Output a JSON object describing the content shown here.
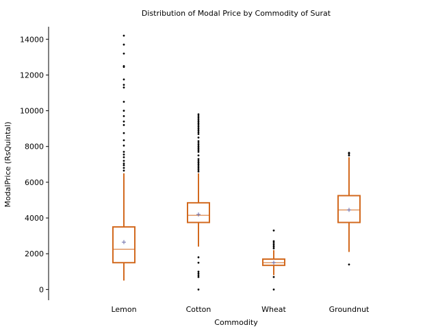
{
  "chart_data": {
    "type": "box",
    "title": "Distribution of Modal Price by Commodity of Surat",
    "xlabel": "Commodity",
    "ylabel": "ModalPrice (RsQuintal)",
    "ylim": [
      -600,
      14700
    ],
    "yticks": [
      0,
      2000,
      4000,
      6000,
      8000,
      10000,
      12000,
      14000
    ],
    "grid": false,
    "colors": {
      "box": "#d2691e",
      "mean": "#6a6aa8",
      "outlier": "#000000"
    },
    "categories": [
      "Lemon",
      "Cotton",
      "Wheat",
      "Groundnut"
    ],
    "boxes": [
      {
        "category": "Lemon",
        "whisker_low": 500,
        "q1": 1500,
        "median": 2250,
        "q3": 3500,
        "whisker_high": 6500,
        "mean": 2650,
        "outliers": [
          6650,
          6800,
          6950,
          7050,
          7200,
          7400,
          7550,
          7700,
          8050,
          8350,
          8750,
          9200,
          9400,
          9700,
          10000,
          10500,
          11300,
          11450,
          11750,
          12450,
          12500,
          13200,
          13700,
          14200
        ]
      },
      {
        "category": "Cotton",
        "whisker_low": 2400,
        "q1": 3750,
        "median": 4150,
        "q3": 4850,
        "whisker_high": 6500,
        "mean": 4200,
        "outliers": [
          0,
          700,
          800,
          900,
          1000,
          1500,
          1800,
          6600,
          6700,
          6800,
          6900,
          7000,
          7100,
          7200,
          7300,
          7500,
          7700,
          7800,
          7900,
          8000,
          8100,
          8200,
          8300,
          8500,
          8700,
          8800,
          8900,
          9000,
          9100,
          9200,
          9300,
          9400,
          9500,
          9600,
          9700,
          9800
        ]
      },
      {
        "category": "Wheat",
        "whisker_low": 800,
        "q1": 1350,
        "median": 1500,
        "q3": 1700,
        "whisker_high": 2200,
        "mean": 1500,
        "outliers": [
          0,
          700,
          2300,
          2400,
          2500,
          2600,
          2700,
          3300
        ]
      },
      {
        "category": "Groundnut",
        "whisker_low": 2100,
        "q1": 3750,
        "median": 4450,
        "q3": 5250,
        "whisker_high": 7400,
        "mean": 4450,
        "outliers": [
          1400,
          7500,
          7600,
          7650
        ]
      }
    ]
  }
}
